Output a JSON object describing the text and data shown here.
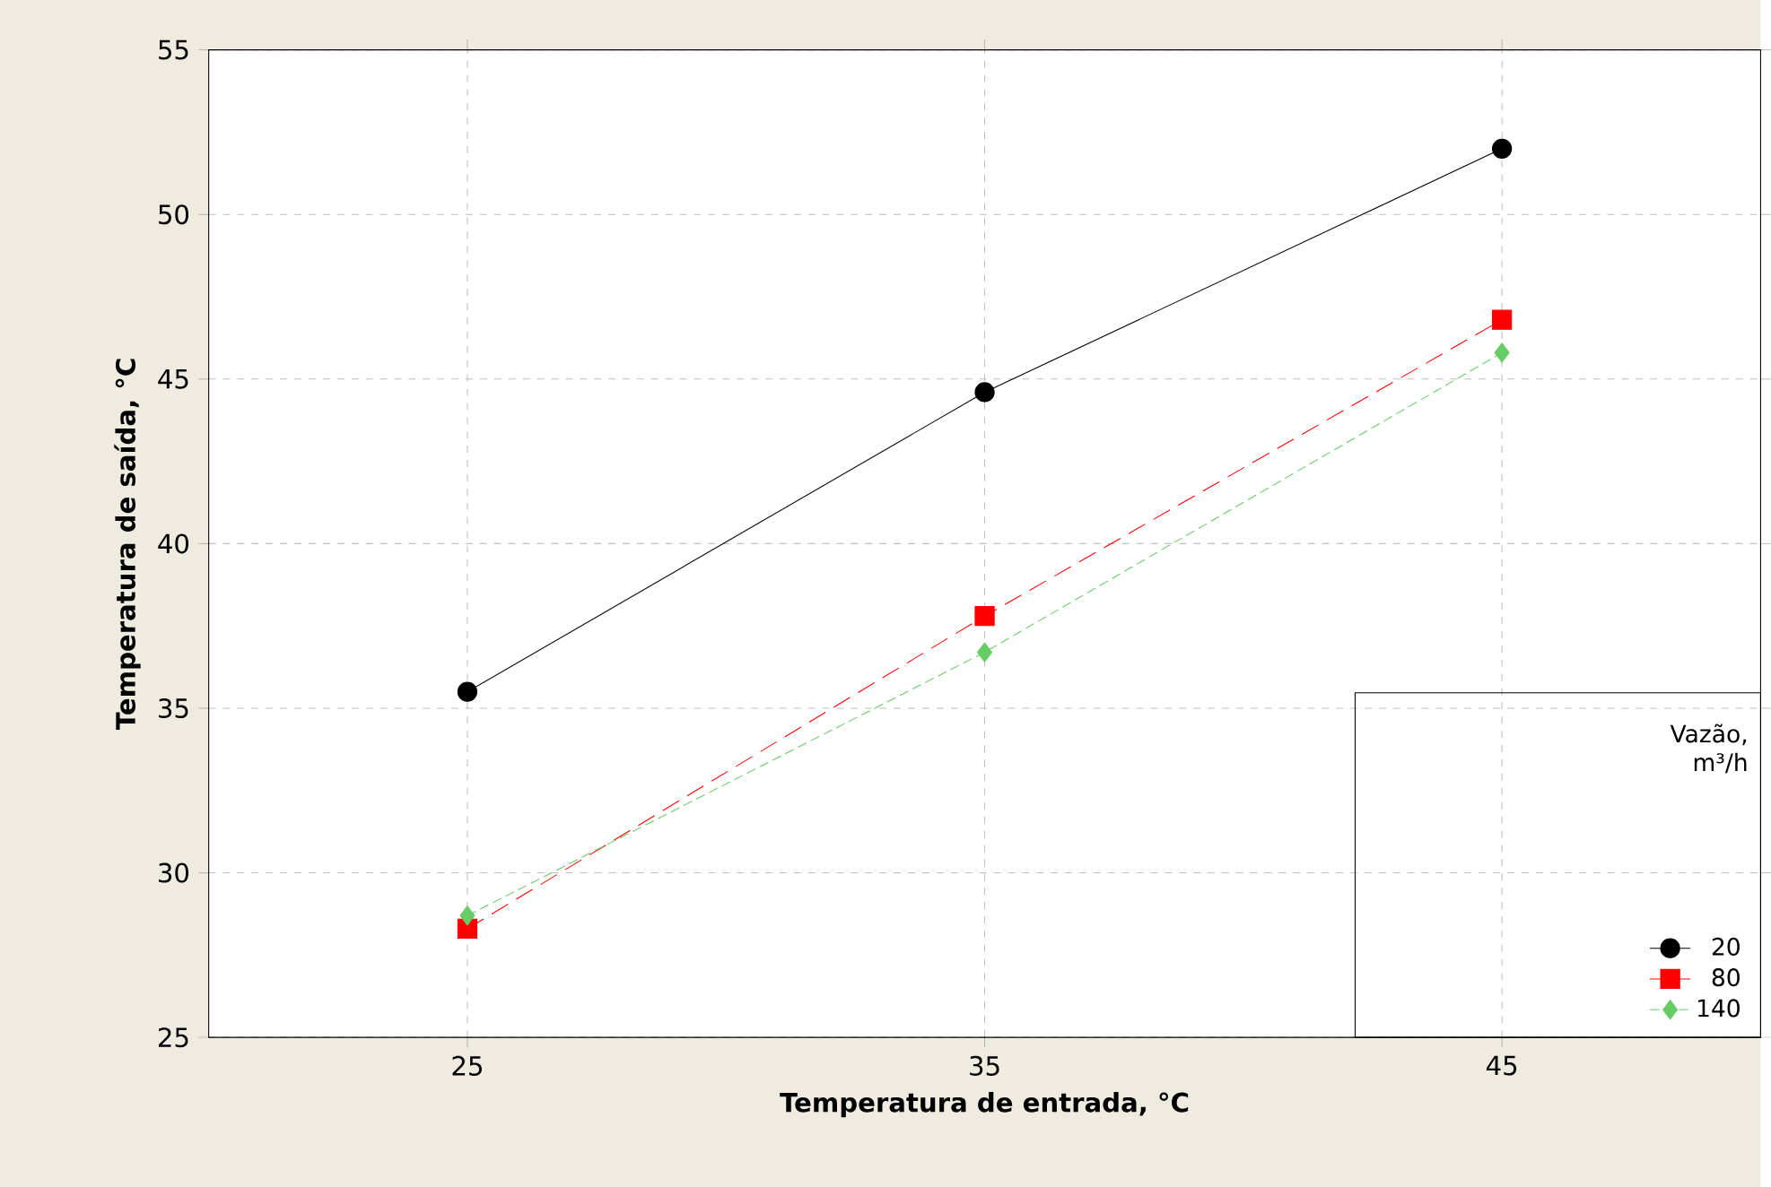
{
  "chart_data": {
    "type": "line",
    "xlabel": "Temperatura de entrada, °C",
    "ylabel": "Temperatura de saída, °C",
    "legend_title": "Vazão, m³/h",
    "x": [
      25,
      35,
      45
    ],
    "series": [
      {
        "name": "20",
        "color": "#000000",
        "values": [
          35.5,
          44.6,
          52.0
        ],
        "marker": "circle",
        "line_style": "solid"
      },
      {
        "name": "80",
        "color": "#ff0000",
        "values": [
          28.3,
          37.8,
          46.8
        ],
        "marker": "square",
        "line_style": "dashed"
      },
      {
        "name": "140",
        "color": "#66cc66",
        "values": [
          28.7,
          36.7,
          45.8
        ],
        "marker": "diamond",
        "line_style": "dotted"
      }
    ],
    "xlim": [
      20,
      50
    ],
    "ylim": [
      25,
      55
    ],
    "xticks": [
      25,
      35,
      45
    ],
    "yticks": [
      25,
      30,
      35,
      40,
      45,
      50,
      55
    ],
    "grid": true,
    "legend": "bottom right"
  }
}
